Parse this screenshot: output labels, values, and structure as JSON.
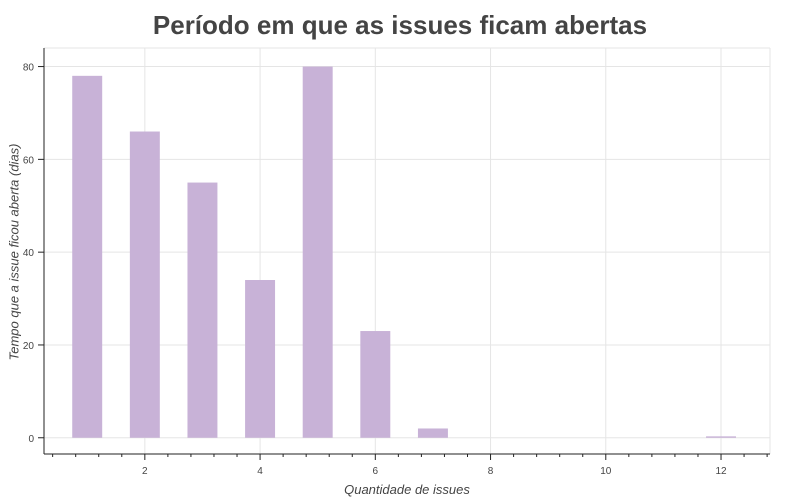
{
  "chart_data": {
    "type": "bar",
    "title": "Período em que as issues ficam abertas",
    "xlabel": "Quantidade de issues",
    "ylabel": "Tempo que a issue ficou aberta (dias)",
    "x": [
      1,
      2,
      3,
      4,
      5,
      6,
      7,
      12
    ],
    "values": [
      78,
      66,
      55,
      34,
      80,
      23,
      2,
      0.3
    ],
    "xlim": [
      0.25,
      12.85
    ],
    "ylim": [
      -3.5,
      84
    ],
    "xticks": [
      2,
      4,
      6,
      8,
      10,
      12
    ],
    "yticks": [
      0,
      20,
      40,
      60,
      80
    ],
    "bar_color": "#c8b2d7",
    "grid": true
  }
}
